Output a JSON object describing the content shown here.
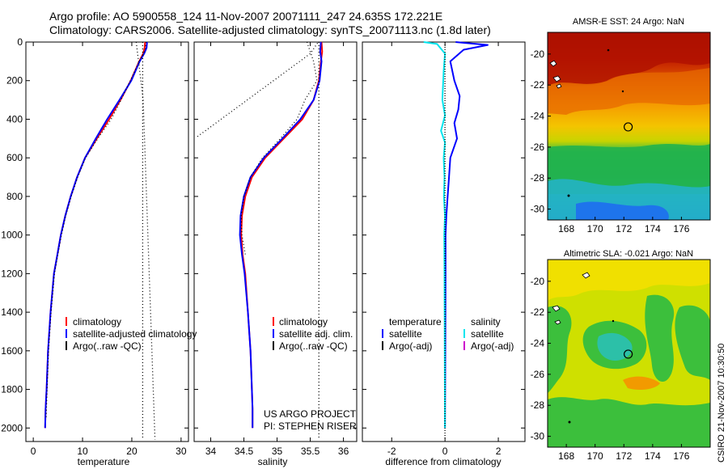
{
  "header": {
    "line1": "Argo profile: AO 5900558_124 11-Nov-2007 20071111_247 24.635S 172.221E",
    "line2": "Climatology: CARS2006. Satellite-adjusted climatology: synTS_20071113.nc (1.8d later)"
  },
  "colors": {
    "climatology": "#ff0000",
    "satellite": "#0000ff",
    "argo": "#000000",
    "salinity_satellite": "#00e5ee",
    "salinity_argo": "#cc00cc"
  },
  "chart_data": [
    {
      "id": "temperature",
      "type": "line",
      "xlabel": "temperature",
      "xlim": [
        -1.5,
        31.5
      ],
      "ylim": [
        2070,
        0
      ],
      "xticks": [
        "0",
        "10",
        "20",
        "30"
      ],
      "yticks": [
        "0",
        "200",
        "400",
        "600",
        "800",
        "1000",
        "1200",
        "1400",
        "1600",
        "1800",
        "2000"
      ],
      "legend": [
        "climatology",
        "satellite-adjusted climatology",
        "Argo(..raw -QC)"
      ],
      "series": [
        {
          "name": "climatology",
          "color": "#ff0000",
          "dash": "none",
          "x": [
            22.7,
            22.6,
            22.3,
            21.5,
            19.8,
            17.7,
            15.4,
            12.9,
            10.5,
            8.9,
            7.6,
            6.5,
            5.6,
            4.9,
            4.2,
            3.5,
            3.0,
            2.7,
            2.5,
            2.4
          ],
          "y": [
            0,
            30,
            60,
            100,
            200,
            300,
            400,
            500,
            600,
            700,
            800,
            900,
            1000,
            1100,
            1200,
            1400,
            1600,
            1800,
            1900,
            2000
          ]
        },
        {
          "name": "satellite-adjusted climatology",
          "color": "#0000ff",
          "dash": "none",
          "x": [
            23.1,
            23.0,
            22.5,
            21.6,
            19.9,
            17.5,
            15.0,
            12.7,
            10.5,
            8.9,
            7.6,
            6.5,
            5.6,
            4.9,
            4.2,
            3.5,
            3.0,
            2.7,
            2.5,
            2.4
          ],
          "y": [
            0,
            30,
            60,
            100,
            200,
            300,
            400,
            500,
            600,
            700,
            800,
            900,
            1000,
            1100,
            1200,
            1400,
            1600,
            1800,
            1900,
            2000
          ]
        },
        {
          "name": "Argo(..raw -QC)",
          "color": "#000000",
          "dash": "1,3",
          "x": [
            22.9,
            22.8,
            22.4,
            21.5,
            19.7,
            17.8,
            15.8,
            13.1,
            10.6,
            9.0,
            7.7,
            6.6,
            5.7,
            5.0,
            4.3,
            3.6,
            3.1,
            2.8,
            2.6
          ],
          "y": [
            0,
            30,
            60,
            100,
            200,
            300,
            400,
            500,
            600,
            700,
            800,
            900,
            1000,
            1100,
            1200,
            1400,
            1600,
            1800,
            1950
          ]
        },
        {
          "name": "dotted reference 1",
          "color": "#000000",
          "dash": "1,3",
          "x": [
            20.9,
            22.3,
            24.7
          ],
          "y": [
            0,
            300,
            2060
          ]
        },
        {
          "name": "dotted reference 2",
          "color": "#000000",
          "dash": "1,3",
          "x": [
            22.2,
            22.2
          ],
          "y": [
            0,
            2060
          ]
        }
      ]
    },
    {
      "id": "salinity",
      "type": "line",
      "xlabel": "salinity",
      "xlim": [
        33.75,
        36.2
      ],
      "ylim": [
        2070,
        0
      ],
      "xticks": [
        "34",
        "34.5",
        "35",
        "35.5",
        "36"
      ],
      "legend": [
        "climatology",
        "satellite adj. clim.",
        "Argo(..raw -QC)"
      ],
      "annotation": [
        "US ARGO PROJECT",
        "PI: STEPHEN RISER"
      ],
      "series": [
        {
          "name": "climatology",
          "color": "#ff0000",
          "dash": "none",
          "x": [
            35.67,
            35.68,
            35.66,
            35.63,
            35.55,
            35.38,
            35.1,
            34.82,
            34.62,
            34.52,
            34.47,
            34.46,
            34.48,
            34.52,
            34.56,
            34.6,
            34.62,
            34.63,
            34.63
          ],
          "y": [
            0,
            50,
            100,
            200,
            300,
            400,
            500,
            600,
            700,
            800,
            900,
            1000,
            1100,
            1200,
            1400,
            1600,
            1800,
            1900,
            2000
          ]
        },
        {
          "name": "satellite adj. clim.",
          "color": "#0000ff",
          "dash": "none",
          "x": [
            35.66,
            35.65,
            35.67,
            35.64,
            35.55,
            35.35,
            35.08,
            34.8,
            34.6,
            34.5,
            34.45,
            34.44,
            34.47,
            34.51,
            34.56,
            34.6,
            34.62,
            34.63,
            34.63
          ],
          "y": [
            0,
            50,
            100,
            200,
            300,
            400,
            500,
            600,
            700,
            800,
            900,
            1000,
            1100,
            1200,
            1400,
            1600,
            1800,
            1900,
            2000
          ]
        },
        {
          "name": "Argo(..raw -QC)",
          "color": "#000000",
          "dash": "1,3",
          "x": [
            35.45,
            35.55,
            35.6,
            35.42,
            35.3,
            35.05,
            34.78,
            34.6,
            34.5,
            34.46,
            34.47,
            34.52
          ],
          "y": [
            0,
            100,
            200,
            300,
            400,
            500,
            600,
            700,
            800,
            900,
            1000,
            1100
          ]
        },
        {
          "name": "dotted reference 1",
          "color": "#000000",
          "dash": "1,3",
          "x": [
            33.8,
            35.5,
            35.62
          ],
          "y": [
            490,
            60,
            0
          ]
        },
        {
          "name": "dotted reference 2",
          "color": "#000000",
          "dash": "1,3",
          "x": [
            35.63,
            35.63
          ],
          "y": [
            0,
            2060
          ]
        }
      ]
    },
    {
      "id": "difference",
      "type": "line",
      "xlabel": "difference from climatology",
      "xlim": [
        -3.1,
        3.0
      ],
      "ylim": [
        2070,
        0
      ],
      "xticks": [
        "-2",
        "0",
        "2"
      ],
      "legend_headers": [
        "temperature",
        "salinity"
      ],
      "legend": [
        "satellite",
        "Argo(-adj)",
        "satellite",
        "Argo(-adj)"
      ],
      "series": [
        {
          "name": "temperature satellite",
          "color": "#0000ff",
          "dash": "none",
          "x": [
            0.4,
            1.6,
            0.7,
            0.2,
            0.35,
            0.55,
            0.5,
            0.35,
            0.45,
            0.2,
            0.15,
            0.1,
            0.05,
            0.02,
            0.02,
            0.01,
            0.0
          ],
          "y": [
            0,
            15,
            40,
            100,
            200,
            280,
            350,
            420,
            500,
            600,
            700,
            800,
            900,
            1000,
            1200,
            1600,
            2000
          ]
        },
        {
          "name": "salinity satellite",
          "color": "#00e5ee",
          "dash": "none",
          "x": [
            -0.8,
            -0.3,
            0.0,
            -0.05,
            -0.1,
            0.0,
            -0.15,
            0.0,
            -0.05,
            -0.02,
            -0.04,
            0.0,
            -0.03,
            -0.02,
            -0.01,
            0.0
          ],
          "y": [
            0,
            10,
            60,
            150,
            300,
            380,
            460,
            520,
            600,
            700,
            800,
            900,
            1000,
            1200,
            1600,
            2000
          ]
        },
        {
          "name": "zero line",
          "color": "#000000",
          "dash": "1,2",
          "x": [
            0,
            0
          ],
          "y": [
            0,
            2060
          ]
        }
      ]
    },
    {
      "id": "sst_map",
      "type": "heatmap",
      "title": "AMSR-E SST: 24 Argo: NaN",
      "xlim": [
        166.7,
        178
      ],
      "ylim": [
        -30.7,
        -18.6
      ],
      "xticks": [
        "168",
        "170",
        "172",
        "174",
        "176"
      ],
      "yticks": [
        "-20",
        "-22",
        "-24",
        "-26",
        "-28",
        "-30"
      ],
      "marker": {
        "lon": 172.3,
        "lat": -24.7
      }
    },
    {
      "id": "sla_map",
      "type": "heatmap",
      "title": "Altimetric SLA: -0.021 Argo: NaN",
      "xlim": [
        166.7,
        178
      ],
      "ylim": [
        -30.7,
        -18.6
      ],
      "xticks": [
        "168",
        "170",
        "172",
        "174",
        "176"
      ],
      "yticks": [
        "-20",
        "-22",
        "-24",
        "-26",
        "-28",
        "-30"
      ],
      "marker": {
        "lon": 172.3,
        "lat": -24.7
      }
    }
  ],
  "footer": {
    "stamp": "CSIRO 21-Nov-2007 10:30:50"
  }
}
